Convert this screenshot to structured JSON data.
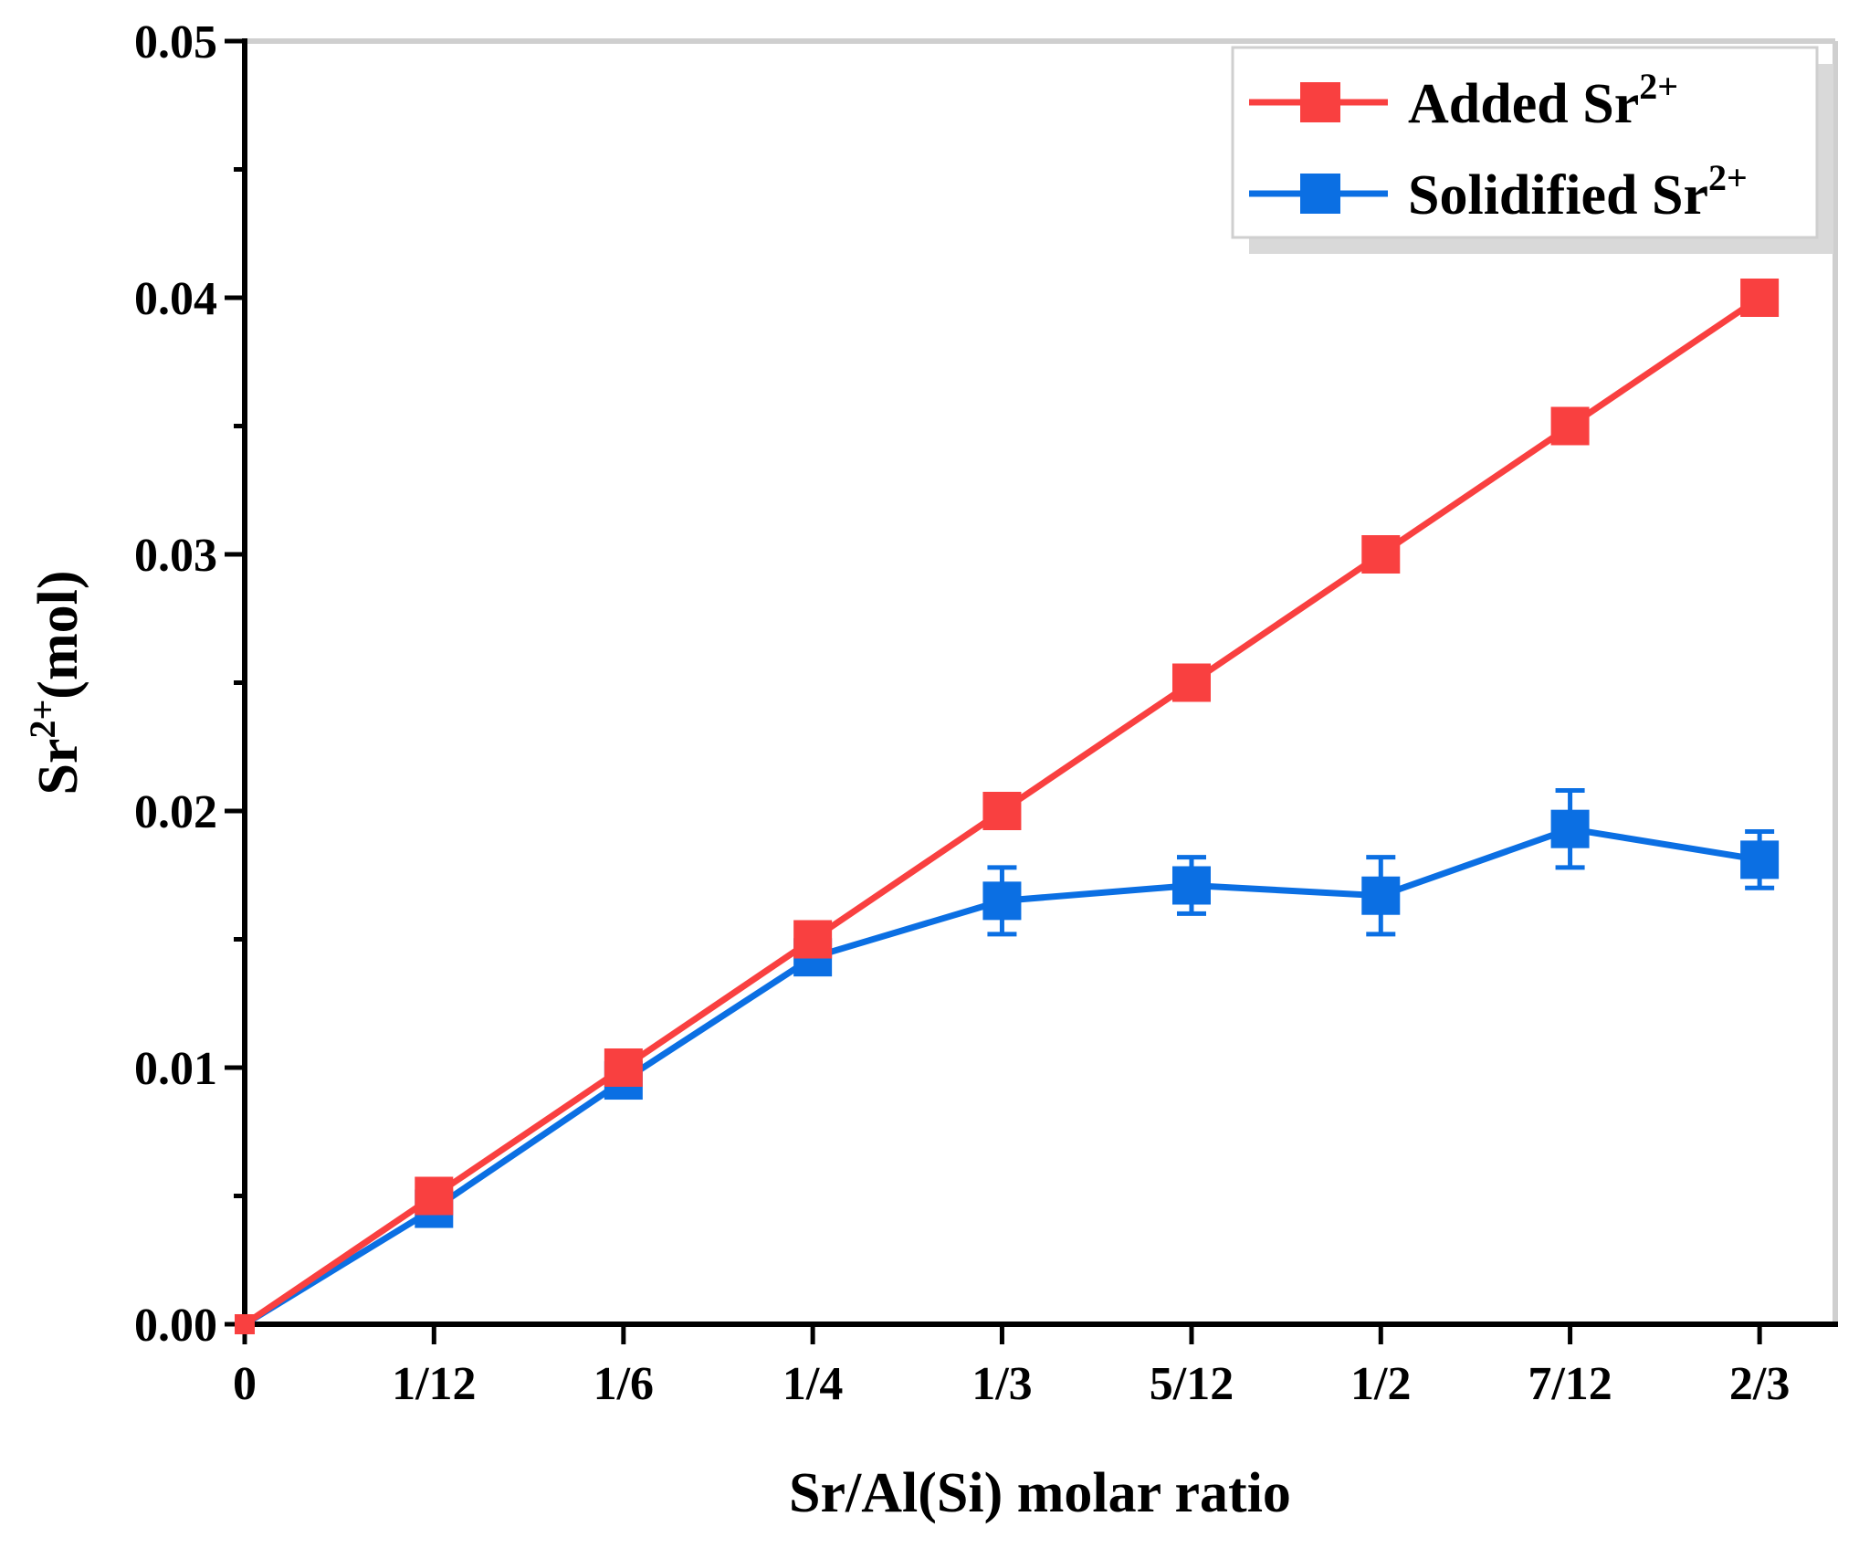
{
  "chart_data": {
    "type": "line",
    "title": "",
    "xlabel": "Sr/Al(Si) molar ratio",
    "ylabel": {
      "base": "Sr",
      "sup": "2+",
      "suffix": "(mol)"
    },
    "categories": [
      "0",
      "1/12",
      "1/6",
      "1/4",
      "1/3",
      "5/12",
      "1/2",
      "7/12",
      "2/3"
    ],
    "x": [
      0,
      0.0833,
      0.1667,
      0.25,
      0.3333,
      0.4167,
      0.5,
      0.5833,
      0.6667
    ],
    "xlim": [
      0,
      0.7
    ],
    "ylim": [
      0,
      0.05
    ],
    "yticks": [
      0.0,
      0.01,
      0.02,
      0.03,
      0.04,
      0.05
    ],
    "ytick_labels": [
      "0.00",
      "0.01",
      "0.02",
      "0.03",
      "0.04",
      "0.05"
    ],
    "grid": false,
    "legend_position": "top-right",
    "series": [
      {
        "name": {
          "base": "Added Sr",
          "sup": "2+"
        },
        "color": "#F94040",
        "values": [
          0.0,
          0.005,
          0.01,
          0.015,
          0.02,
          0.025,
          0.03,
          0.035,
          0.04
        ],
        "errors": [
          0,
          0,
          0,
          0,
          0,
          0,
          0,
          0,
          0
        ]
      },
      {
        "name": {
          "base": "Solidified Sr",
          "sup": "2+"
        },
        "color": "#0B6FE3",
        "values": [
          0.0,
          0.0045,
          0.0095,
          0.0143,
          0.0165,
          0.0171,
          0.0167,
          0.0193,
          0.0181
        ],
        "errors": [
          0,
          0,
          0,
          0,
          0.0013,
          0.0011,
          0.0015,
          0.0015,
          0.0011
        ]
      }
    ]
  }
}
